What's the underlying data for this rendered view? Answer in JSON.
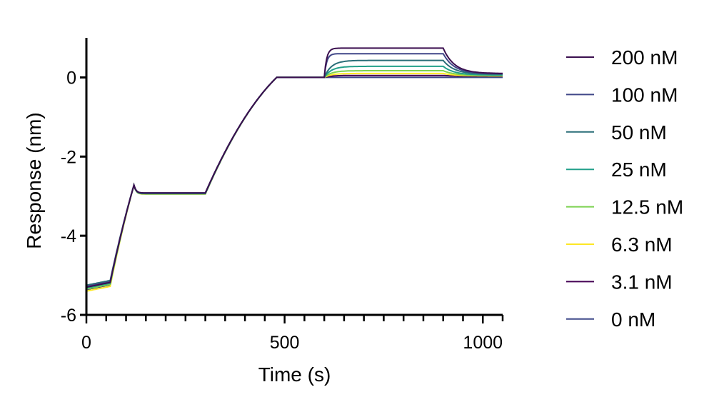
{
  "chart_data": {
    "type": "line",
    "title": "",
    "xlabel": "Time (s)",
    "ylabel": "Response  (nm)",
    "xlim": [
      0,
      1050
    ],
    "ylim": [
      -6,
      1
    ],
    "xticks": [
      0,
      500,
      1000
    ],
    "yticks": [
      -6,
      -4,
      -2,
      0
    ],
    "grid": false,
    "legend_position": "right",
    "phases": {
      "baseline_1": [
        0,
        60
      ],
      "loading": [
        60,
        120
      ],
      "baseline_2": [
        120,
        300
      ],
      "regeneration_step": [
        300,
        480
      ],
      "baseline_3": [
        480,
        600
      ],
      "association": [
        600,
        900
      ],
      "dissociation": [
        900,
        1050
      ]
    },
    "series": [
      {
        "name": "200 nM",
        "color": "#3b0f4f",
        "start_y": -5.3,
        "plateau_y": -2.92,
        "assoc_max": 0.74,
        "dissoc_end": 0.1
      },
      {
        "name": "100 nM",
        "color": "#404788",
        "start_y": -5.28,
        "plateau_y": -2.92,
        "assoc_max": 0.6,
        "dissoc_end": 0.09
      },
      {
        "name": "50 nM",
        "color": "#2a6e78",
        "start_y": -5.25,
        "plateau_y": -2.93,
        "assoc_max": 0.43,
        "dissoc_end": 0.08
      },
      {
        "name": "25 nM",
        "color": "#22a08a",
        "start_y": -5.32,
        "plateau_y": -2.94,
        "assoc_max": 0.28,
        "dissoc_end": 0.06
      },
      {
        "name": "12.5 nM",
        "color": "#7cd250",
        "start_y": -5.35,
        "plateau_y": -2.94,
        "assoc_max": 0.17,
        "dissoc_end": 0.05
      },
      {
        "name": "6.3 nM",
        "color": "#fde725",
        "start_y": -5.4,
        "plateau_y": -2.95,
        "assoc_max": 0.1,
        "dissoc_end": 0.04
      },
      {
        "name": "3.1 nM",
        "color": "#440154",
        "start_y": -5.36,
        "plateau_y": -2.93,
        "assoc_max": 0.05,
        "dissoc_end": 0.03
      },
      {
        "name": "0 nM",
        "color": "#3e4989",
        "start_y": -5.33,
        "plateau_y": -2.92,
        "assoc_max": 0.0,
        "dissoc_end": 0.0
      }
    ]
  }
}
